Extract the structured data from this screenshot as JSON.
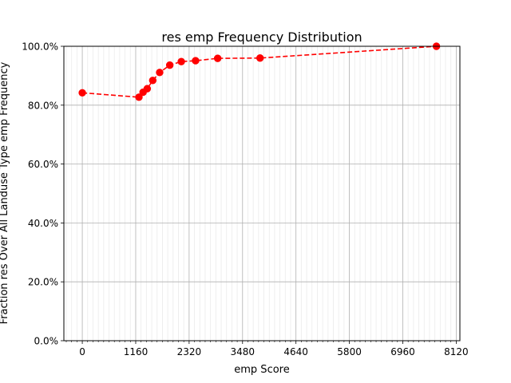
{
  "chart_data": {
    "type": "line",
    "title": "res emp Frequency Distribution",
    "xlabel": "emp Score",
    "ylabel": "Fraction res Over All Landuse Type emp Frequency",
    "xlim": [
      -400,
      8200
    ],
    "ylim": [
      0,
      100
    ],
    "x_ticks": [
      0,
      1160,
      2320,
      3480,
      4640,
      5800,
      6960,
      8120
    ],
    "x_tick_labels": [
      "0",
      "1160",
      "2320",
      "3480",
      "4640",
      "5800",
      "6960",
      "8120"
    ],
    "y_ticks": [
      0,
      20,
      40,
      60,
      80,
      100
    ],
    "y_tick_labels": [
      "0.0%",
      "20.0%",
      "40.0%",
      "60.0%",
      "80.0%",
      "100.0%"
    ],
    "grid": true,
    "series": [
      {
        "color": "#ff0000",
        "line_style": "dashed",
        "marker": "circle",
        "x": [
          0,
          1230,
          1320,
          1410,
          1530,
          1680,
          1900,
          2150,
          2460,
          2940,
          3860,
          7690
        ],
        "y": [
          84.2,
          82.7,
          84.4,
          85.6,
          88.4,
          91.1,
          93.6,
          94.8,
          95.1,
          95.9,
          96.0,
          100.0
        ]
      }
    ]
  }
}
